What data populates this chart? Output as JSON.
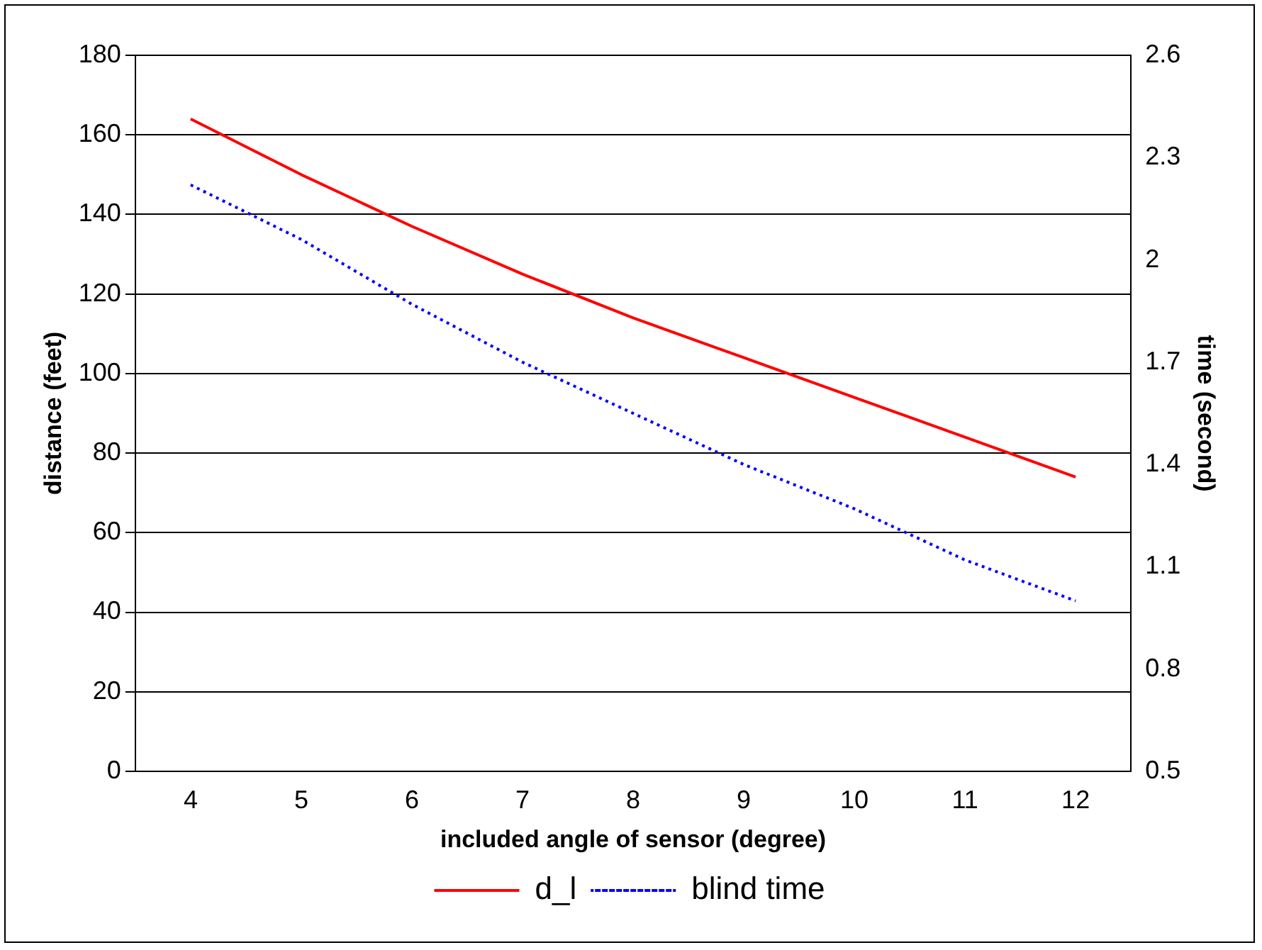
{
  "chart_data": {
    "type": "line",
    "xlabel": "included angle of sensor (degree)",
    "ylabel": "distance (feet)",
    "y2label": "time (second)",
    "categories": [
      "4",
      "5",
      "6",
      "7",
      "8",
      "9",
      "10",
      "11",
      "12"
    ],
    "series": [
      {
        "name": "d_l",
        "color": "#ff0000",
        "line_style": "solid",
        "values": [
          164,
          150,
          137,
          125,
          114,
          104,
          94,
          84,
          74
        ]
      },
      {
        "name": "blind time",
        "color": "#0000ff",
        "line_style": "dotted",
        "axis": "y2",
        "values": [
          2.22,
          2.06,
          1.87,
          1.7,
          1.55,
          1.4,
          1.27,
          1.12,
          1.0
        ]
      }
    ],
    "ylim": [
      0,
      180
    ],
    "yticks": [
      0,
      20,
      40,
      60,
      80,
      100,
      120,
      140,
      160,
      180
    ],
    "y2lim": [
      0.5,
      2.6
    ],
    "y2ticks": [
      0.5,
      0.8,
      1.1,
      1.4,
      1.7,
      2,
      2.3,
      2.6
    ],
    "grid": "y",
    "legend": "bottom",
    "marker": "none"
  }
}
